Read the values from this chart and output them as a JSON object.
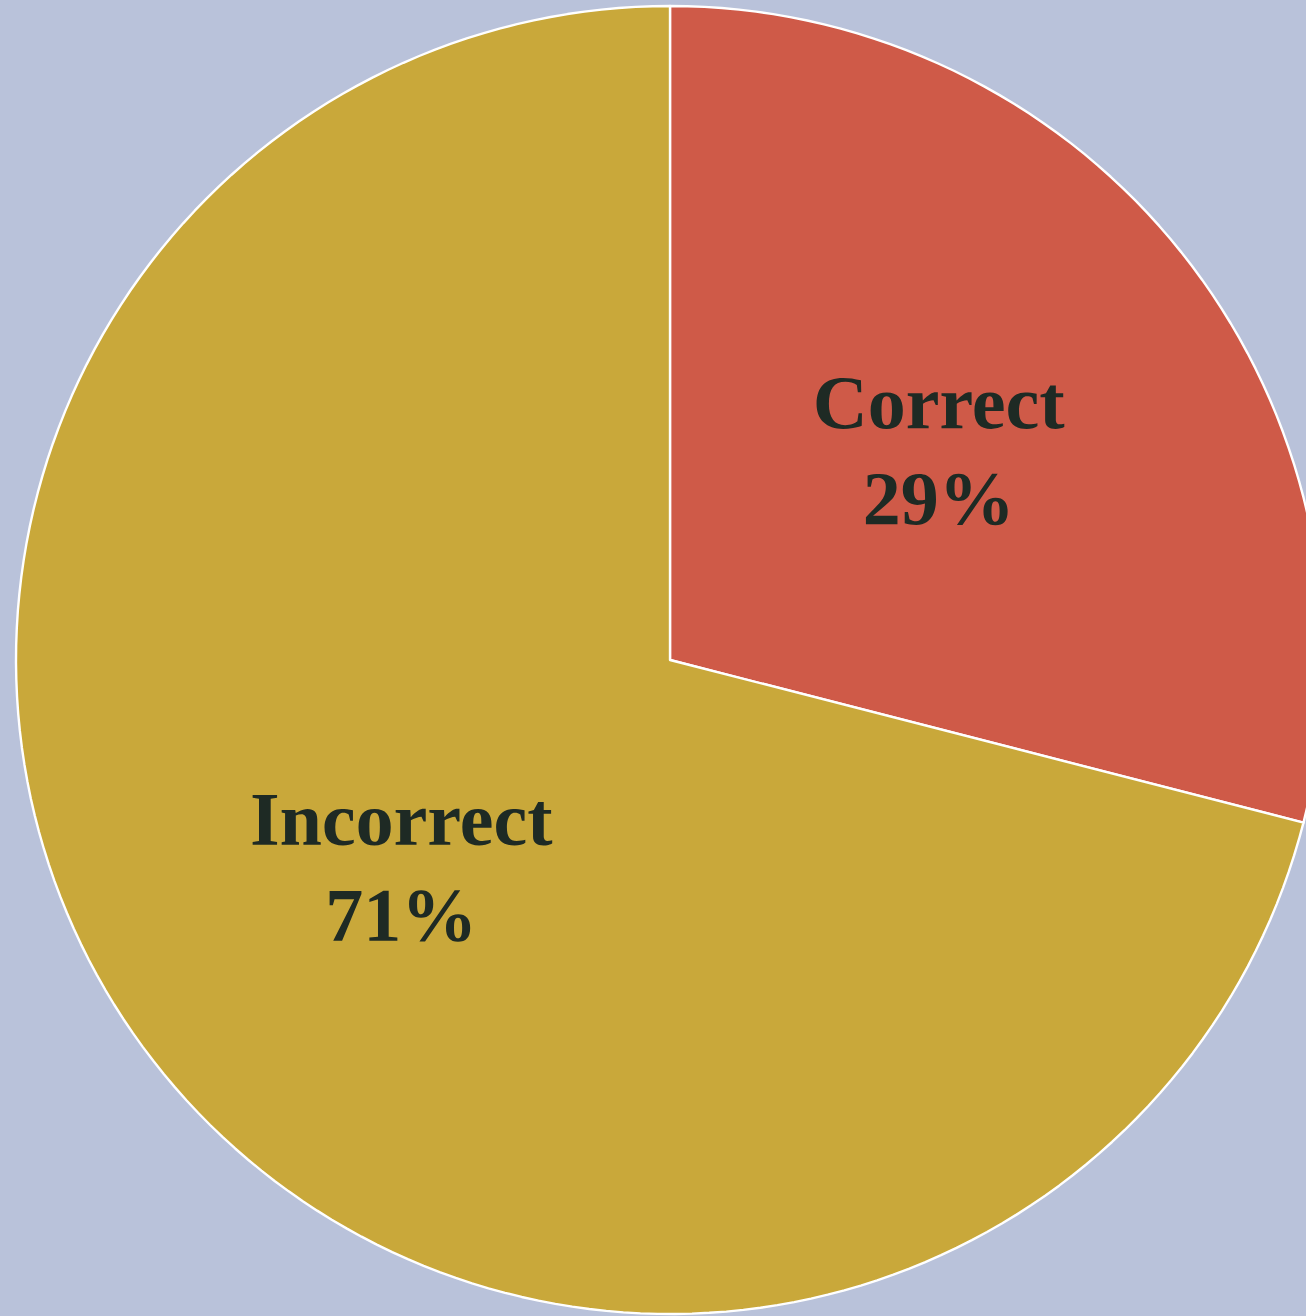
{
  "chart_data": {
    "type": "pie",
    "categories": [
      "Correct",
      "Incorrect"
    ],
    "values": [
      29,
      71
    ],
    "value_labels": [
      "29%",
      "71%"
    ],
    "colors": [
      "#cf5a48",
      "#c9a83a"
    ]
  }
}
